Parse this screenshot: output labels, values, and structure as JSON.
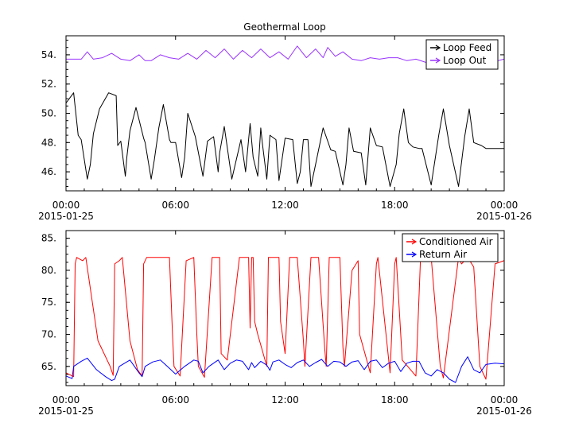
{
  "figure": {
    "background": "#ffffff"
  },
  "chart_data": [
    {
      "type": "line",
      "title": "Geothermal Loop",
      "xlabel": "",
      "ylabel": "",
      "x_range": [
        "2015-01-25 00:00",
        "2015-01-26 00:00"
      ],
      "x_ticks": [
        {
          "time": "00:00",
          "date": "2015-01-25"
        },
        {
          "time": "06:00",
          "date": ""
        },
        {
          "time": "12:00",
          "date": ""
        },
        {
          "time": "18:00",
          "date": ""
        },
        {
          "time": "00:00",
          "date": "2015-01-26"
        }
      ],
      "ylim": [
        44.7,
        55.3
      ],
      "y_ticks": [
        "46.",
        "48.",
        "50.",
        "52.",
        "54."
      ],
      "y_tick_values": [
        46,
        48,
        50,
        52,
        54
      ],
      "legend_position": "top-right",
      "series": [
        {
          "name": "Loop Feed",
          "color": "#000000",
          "x": [
            "00:00",
            "00:25",
            "00:40",
            "00:50",
            "01:10",
            "01:20",
            "01:30",
            "01:50",
            "02:20",
            "02:45",
            "02:50",
            "03:00",
            "03:15",
            "03:20",
            "03:30",
            "03:50",
            "04:15",
            "04:20",
            "04:40",
            "04:50",
            "05:05",
            "05:20",
            "05:40",
            "05:45",
            "06:00",
            "06:20",
            "06:30",
            "06:40",
            "07:05",
            "07:30",
            "07:45",
            "08:05",
            "08:20",
            "08:25",
            "08:40",
            "09:05",
            "09:35",
            "09:50",
            "10:05",
            "10:15",
            "10:30",
            "10:40",
            "10:45",
            "11:00",
            "11:10",
            "11:30",
            "11:40",
            "12:00",
            "12:25",
            "12:40",
            "12:50",
            "13:00",
            "13:15",
            "13:25",
            "13:40",
            "14:05",
            "14:20",
            "14:30",
            "14:45",
            "15:10",
            "15:20",
            "15:30",
            "15:45",
            "16:10",
            "16:25",
            "16:40",
            "17:00",
            "17:20",
            "17:45",
            "18:05",
            "18:15",
            "18:30",
            "18:45",
            "19:00",
            "19:20",
            "19:30",
            "20:00",
            "20:25",
            "20:40",
            "21:00",
            "21:30",
            "21:50",
            "22:05",
            "22:20",
            "22:45",
            "23:00",
            "23:30",
            "23:59"
          ],
          "y": [
            50.7,
            51.4,
            48.5,
            48.2,
            45.5,
            46.5,
            48.6,
            50.3,
            51.4,
            51.2,
            47.8,
            48.1,
            45.7,
            47.0,
            48.8,
            50.4,
            48.3,
            48.0,
            45.5,
            46.8,
            49.0,
            50.6,
            48.2,
            48.0,
            48.0,
            45.6,
            47.0,
            50.0,
            48.4,
            45.7,
            48.1,
            48.4,
            46.0,
            47.3,
            49.1,
            45.5,
            48.2,
            46.0,
            49.3,
            47.0,
            45.7,
            49.0,
            48.0,
            45.5,
            48.5,
            48.2,
            45.4,
            48.3,
            48.2,
            45.2,
            46.0,
            48.2,
            48.2,
            45.0,
            46.5,
            49.0,
            48.1,
            47.5,
            47.4,
            45.1,
            46.5,
            49.0,
            47.4,
            47.3,
            45.1,
            49.0,
            47.8,
            47.7,
            45.0,
            46.5,
            48.6,
            50.3,
            48.0,
            47.7,
            47.6,
            47.6,
            45.1,
            48.5,
            50.3,
            47.8,
            45.0,
            48.4,
            50.3,
            48.0,
            47.8,
            47.6,
            47.6,
            47.6
          ]
        },
        {
          "name": "Loop Out",
          "color": "#9933ff",
          "x": [
            "00:00",
            "00:50",
            "01:10",
            "01:30",
            "02:00",
            "02:30",
            "03:00",
            "03:30",
            "04:00",
            "04:20",
            "04:40",
            "05:10",
            "05:40",
            "06:10",
            "06:40",
            "07:10",
            "07:40",
            "08:10",
            "08:40",
            "09:10",
            "09:40",
            "10:10",
            "10:40",
            "11:10",
            "11:40",
            "12:10",
            "12:40",
            "13:10",
            "13:40",
            "14:05",
            "14:20",
            "14:45",
            "15:10",
            "15:40",
            "16:10",
            "16:40",
            "17:10",
            "17:40",
            "18:10",
            "18:40",
            "19:10",
            "19:40",
            "20:10",
            "20:40",
            "21:10",
            "21:40",
            "22:10",
            "22:40",
            "23:10",
            "23:40",
            "23:59"
          ],
          "y": [
            53.7,
            53.7,
            54.2,
            53.7,
            53.8,
            54.1,
            53.7,
            53.6,
            54.0,
            53.6,
            53.6,
            54.0,
            53.8,
            53.7,
            54.1,
            53.7,
            54.3,
            53.8,
            54.4,
            53.7,
            54.3,
            53.8,
            54.4,
            53.8,
            54.2,
            53.7,
            54.6,
            53.8,
            54.4,
            53.8,
            54.5,
            53.9,
            54.2,
            53.7,
            53.6,
            53.8,
            53.7,
            53.8,
            53.8,
            53.6,
            53.7,
            53.5,
            53.4,
            53.6,
            53.7,
            53.5,
            53.7,
            53.6,
            53.6,
            53.6,
            53.7
          ]
        }
      ]
    },
    {
      "type": "line",
      "title": "",
      "xlabel": "",
      "ylabel": "",
      "x_range": [
        "2015-01-25 00:00",
        "2015-01-26 00:00"
      ],
      "x_ticks": [
        {
          "time": "00:00",
          "date": "2015-01-25"
        },
        {
          "time": "06:00",
          "date": ""
        },
        {
          "time": "12:00",
          "date": ""
        },
        {
          "time": "18:00",
          "date": ""
        },
        {
          "time": "00:00",
          "date": "2015-01-26"
        }
      ],
      "ylim": [
        62,
        86.2
      ],
      "y_ticks": [
        "65.",
        "70.",
        "75.",
        "80.",
        "85."
      ],
      "y_tick_values": [
        65,
        70,
        75,
        80,
        85
      ],
      "legend_position": "top-right",
      "series": [
        {
          "name": "Conditioned Air",
          "color": "#ff0000",
          "x": [
            "00:00",
            "00:25",
            "00:30",
            "00:35",
            "00:55",
            "01:05",
            "01:45",
            "02:25",
            "02:35",
            "02:40",
            "02:55",
            "03:05",
            "03:30",
            "03:55",
            "04:10",
            "04:15",
            "04:25",
            "04:45",
            "05:15",
            "05:40",
            "05:50",
            "05:55",
            "06:15",
            "06:35",
            "07:00",
            "07:10",
            "07:15",
            "07:35",
            "08:00",
            "08:25",
            "08:30",
            "08:50",
            "09:30",
            "10:00",
            "10:05",
            "10:10",
            "10:15",
            "10:20",
            "10:30",
            "11:00",
            "11:05",
            "11:10",
            "11:30",
            "11:40",
            "11:45",
            "12:00",
            "12:15",
            "12:40",
            "13:00",
            "13:05",
            "13:25",
            "13:50",
            "14:10",
            "14:15",
            "14:25",
            "15:00",
            "15:10",
            "15:15",
            "15:40",
            "16:00",
            "16:05",
            "16:40",
            "17:00",
            "17:05",
            "17:45",
            "18:00",
            "18:05",
            "18:25",
            "19:10",
            "19:25",
            "20:00",
            "20:30",
            "20:40",
            "21:30",
            "21:40",
            "22:00",
            "22:20",
            "22:40",
            "23:00",
            "23:30",
            "23:59"
          ],
          "y": [
            64.0,
            63.4,
            81.0,
            82.0,
            81.5,
            82.0,
            69.0,
            65.0,
            63.6,
            81.0,
            81.5,
            82.0,
            69.0,
            64.5,
            63.5,
            81.0,
            82.0,
            82.0,
            82.0,
            82.0,
            70.0,
            65.0,
            63.5,
            81.5,
            82.0,
            70.0,
            65.0,
            63.3,
            82.0,
            82.0,
            67.0,
            66.0,
            82.0,
            82.0,
            71.0,
            82.0,
            82.0,
            72.0,
            70.0,
            65.0,
            82.0,
            82.0,
            82.0,
            82.0,
            72.0,
            67.0,
            82.0,
            82.0,
            69.0,
            65.0,
            82.0,
            82.0,
            68.0,
            65.0,
            82.0,
            82.0,
            68.0,
            65.0,
            80.0,
            81.5,
            70.0,
            64.0,
            81.0,
            82.0,
            64.0,
            81.0,
            82.0,
            66.0,
            63.5,
            82.0,
            82.0,
            65.0,
            63.2,
            82.0,
            81.0,
            82.0,
            80.5,
            65.0,
            63.0,
            81.0,
            81.5
          ]
        },
        {
          "name": "Return Air",
          "color": "#0000ff",
          "x": [
            "00:00",
            "00:20",
            "00:25",
            "00:50",
            "01:10",
            "01:40",
            "02:10",
            "02:30",
            "02:40",
            "02:55",
            "03:30",
            "04:00",
            "04:10",
            "04:20",
            "04:45",
            "05:10",
            "05:40",
            "06:00",
            "06:30",
            "07:00",
            "07:15",
            "07:30",
            "07:50",
            "08:20",
            "08:40",
            "09:00",
            "09:20",
            "09:40",
            "10:00",
            "10:10",
            "10:20",
            "10:40",
            "11:00",
            "11:10",
            "11:20",
            "11:40",
            "12:00",
            "12:20",
            "12:40",
            "13:00",
            "13:20",
            "13:40",
            "14:00",
            "14:20",
            "14:40",
            "15:00",
            "15:20",
            "15:40",
            "16:00",
            "16:20",
            "16:40",
            "17:00",
            "17:20",
            "17:40",
            "18:00",
            "18:20",
            "18:40",
            "19:00",
            "19:20",
            "19:40",
            "20:00",
            "20:20",
            "20:40",
            "21:00",
            "21:20",
            "21:40",
            "22:00",
            "22:20",
            "22:40",
            "23:00",
            "23:30",
            "23:59"
          ],
          "y": [
            63.5,
            63.1,
            65.0,
            65.8,
            66.3,
            64.5,
            63.4,
            62.8,
            63.0,
            65.0,
            66.0,
            64.0,
            63.4,
            65.0,
            65.7,
            66.0,
            64.7,
            63.8,
            65.0,
            66.0,
            65.8,
            64.0,
            65.0,
            66.0,
            64.5,
            65.5,
            66.0,
            65.8,
            64.5,
            65.6,
            64.8,
            65.8,
            65.2,
            64.4,
            65.7,
            66.0,
            65.3,
            64.8,
            65.6,
            66.0,
            65.0,
            65.6,
            66.1,
            65.0,
            65.8,
            65.7,
            65.0,
            65.7,
            65.9,
            64.5,
            65.8,
            66.0,
            64.8,
            65.5,
            65.8,
            64.2,
            65.5,
            65.8,
            65.8,
            64.0,
            63.5,
            64.5,
            64.0,
            63.0,
            62.5,
            65.0,
            66.5,
            64.5,
            64.0,
            65.3,
            65.5,
            65.4
          ]
        }
      ]
    }
  ]
}
